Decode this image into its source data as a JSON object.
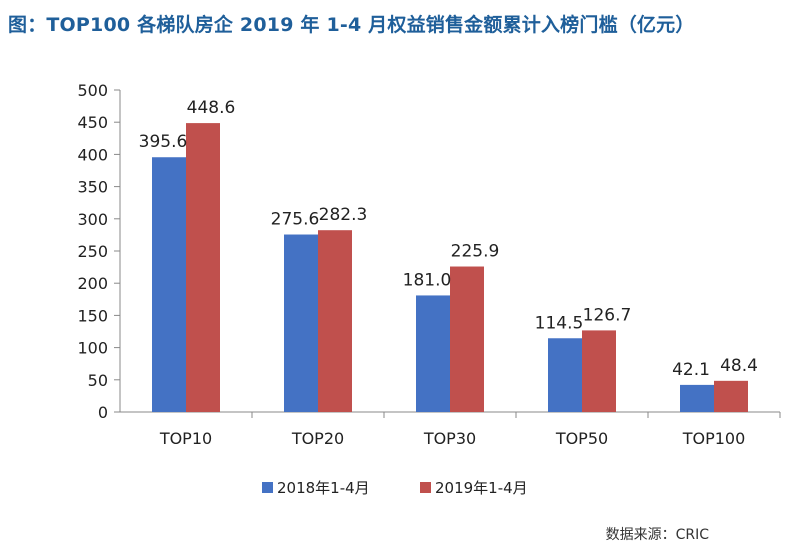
{
  "title": "图：TOP100 各梯队房企 2019 年 1-4 月权益销售金额累计入榜门槛（亿元）",
  "source": "数据来源：CRIC",
  "colors": {
    "series_2018": "#4472c4",
    "series_2019": "#c0504d",
    "axis": "#888888"
  },
  "chart_data": {
    "type": "bar",
    "title": "图：TOP100 各梯队房企 2019 年 1-4 月权益销售金额累计入榜门槛（亿元）",
    "categories": [
      "TOP10",
      "TOP20",
      "TOP30",
      "TOP50",
      "TOP100"
    ],
    "series": [
      {
        "name": "2018年1-4月",
        "values": [
          395.6,
          275.6,
          181.0,
          114.5,
          42.1
        ]
      },
      {
        "name": "2019年1-4月",
        "values": [
          448.6,
          282.3,
          225.9,
          126.7,
          48.4
        ]
      }
    ],
    "yticks": [
      "0",
      "50",
      "100",
      "150",
      "200",
      "250",
      "300",
      "350",
      "400",
      "450",
      "500"
    ],
    "ylim": [
      0,
      500
    ],
    "grid": false,
    "legend": "bottom"
  }
}
